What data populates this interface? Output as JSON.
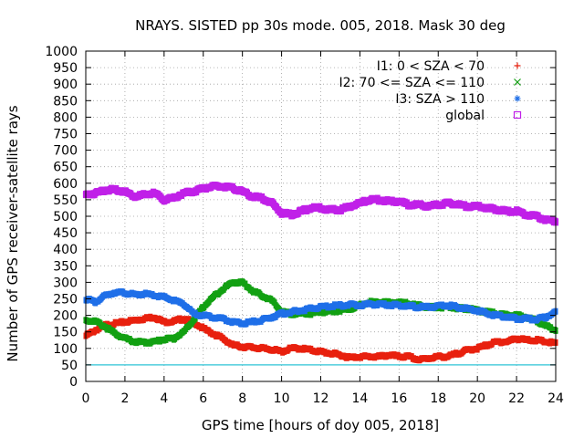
{
  "chart_data": {
    "type": "scatter",
    "title": "NRAYS. SISTED pp 30s mode. 005, 2018. Mask 30 deg",
    "xlabel": "GPS time [hours of doy 005, 2018]",
    "ylabel": "Number of GPS receiver-satellite rays",
    "xlim": [
      0,
      24
    ],
    "ylim": [
      0,
      1000
    ],
    "xticks": [
      0,
      2,
      4,
      6,
      8,
      10,
      12,
      14,
      16,
      18,
      20,
      22,
      24
    ],
    "yticks": [
      0,
      50,
      100,
      150,
      200,
      250,
      300,
      350,
      400,
      450,
      500,
      550,
      600,
      650,
      700,
      750,
      800,
      850,
      900,
      950,
      1000
    ],
    "legend_position": "top-right",
    "reference_line": {
      "y": 50,
      "color": "#2ec4d6"
    },
    "x": [
      0,
      0.5,
      1,
      1.5,
      2,
      2.5,
      3,
      3.5,
      4,
      4.5,
      5,
      5.5,
      6,
      6.5,
      7,
      7.5,
      8,
      8.5,
      9,
      9.5,
      10,
      10.5,
      11,
      11.5,
      12,
      12.5,
      13,
      13.5,
      14,
      14.5,
      15,
      15.5,
      16,
      16.5,
      17,
      17.5,
      18,
      18.5,
      19,
      19.5,
      20,
      20.5,
      21,
      21.5,
      22,
      22.5,
      23,
      23.5,
      24
    ],
    "series": [
      {
        "name": "I1: 0 < SZA < 70",
        "symbol": "+",
        "color": "#e8200e",
        "values": [
          138,
          155,
          170,
          175,
          180,
          185,
          190,
          195,
          180,
          182,
          190,
          180,
          160,
          145,
          130,
          110,
          105,
          103,
          100,
          97,
          90,
          100,
          100,
          95,
          90,
          85,
          80,
          72,
          75,
          75,
          75,
          80,
          75,
          75,
          65,
          70,
          75,
          75,
          85,
          95,
          100,
          110,
          120,
          120,
          130,
          125,
          125,
          120,
          115
        ]
      },
      {
        "name": "I2: 70 <= SZA <= 110",
        "symbol": "×",
        "color": "#12a012",
        "values": [
          185,
          182,
          165,
          145,
          130,
          120,
          118,
          120,
          128,
          130,
          150,
          185,
          225,
          255,
          280,
          300,
          300,
          275,
          260,
          245,
          210,
          205,
          205,
          205,
          210,
          212,
          215,
          220,
          230,
          240,
          240,
          238,
          240,
          235,
          230,
          225,
          225,
          225,
          222,
          220,
          215,
          210,
          205,
          200,
          200,
          195,
          185,
          168,
          155
        ]
      },
      {
        "name": "I3: SZA > 110",
        "symbol": "✱",
        "color": "#1f6fe8",
        "values": [
          250,
          240,
          260,
          270,
          268,
          262,
          265,
          260,
          255,
          245,
          235,
          205,
          200,
          195,
          190,
          180,
          175,
          180,
          185,
          195,
          205,
          210,
          215,
          220,
          225,
          228,
          230,
          232,
          230,
          235,
          232,
          232,
          230,
          228,
          225,
          225,
          228,
          230,
          225,
          220,
          215,
          205,
          200,
          195,
          190,
          190,
          188,
          195,
          210
        ]
      },
      {
        "name": "global",
        "symbol": "□",
        "color": "#c020e8",
        "values": [
          565,
          570,
          580,
          580,
          575,
          560,
          565,
          570,
          550,
          555,
          570,
          575,
          585,
          590,
          590,
          585,
          575,
          560,
          555,
          540,
          510,
          505,
          515,
          525,
          525,
          520,
          520,
          530,
          540,
          550,
          550,
          545,
          545,
          535,
          535,
          530,
          535,
          540,
          535,
          530,
          530,
          525,
          520,
          515,
          515,
          505,
          500,
          490,
          485
        ]
      }
    ]
  }
}
